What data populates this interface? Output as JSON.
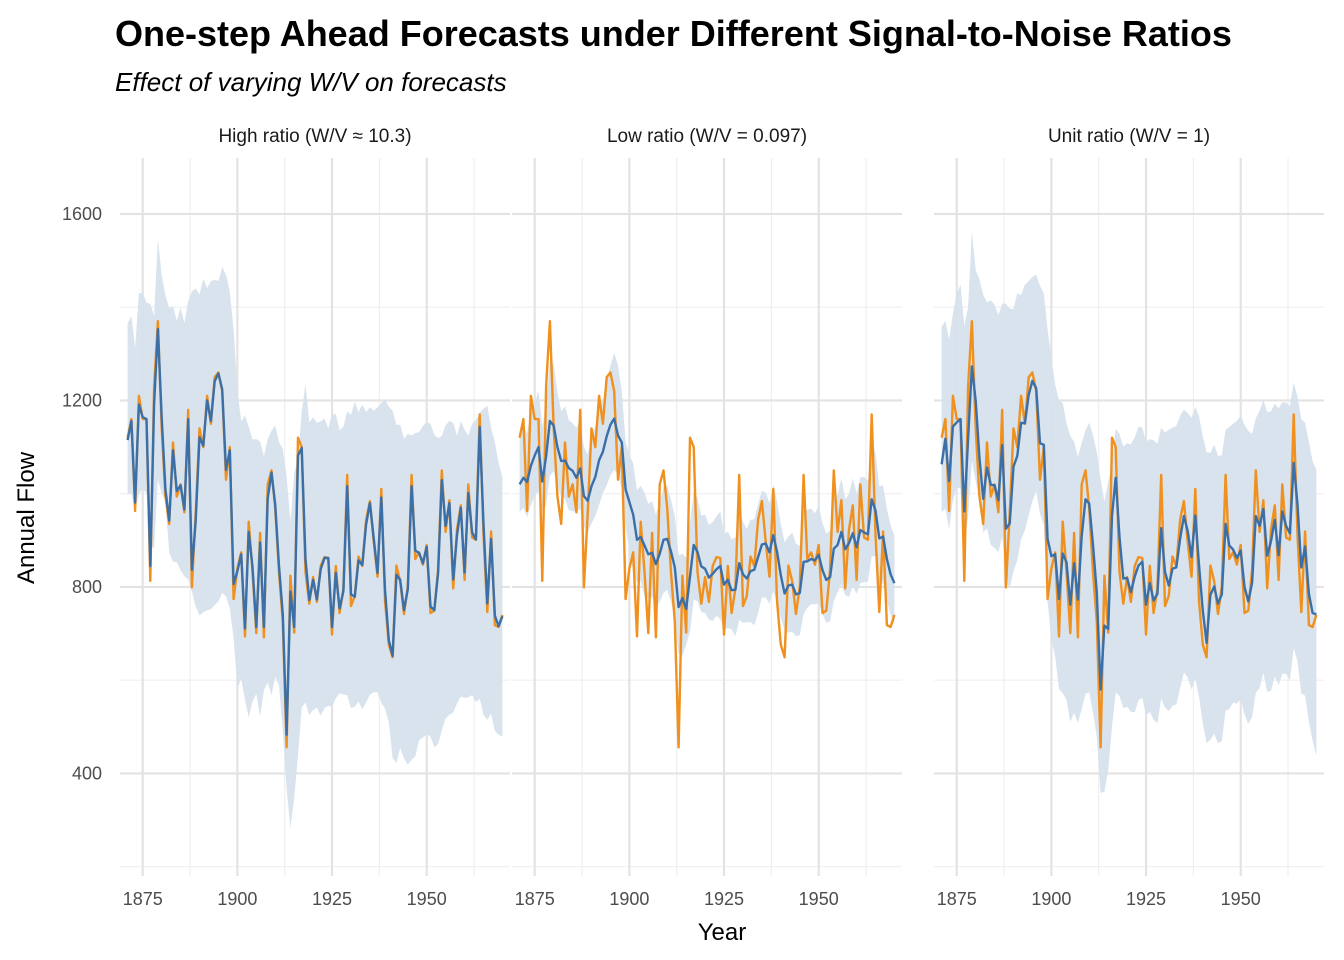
{
  "chart_data": {
    "type": "line",
    "title": "One-step Ahead Forecasts under Different Signal-to-Noise Ratios",
    "subtitle": "Effect of varying W/V on forecasts",
    "xlabel": "Year",
    "ylabel": "Annual Flow",
    "xlim": [
      1869,
      1972
    ],
    "ylim": [
      180,
      1720
    ],
    "x_ticks": [
      1875,
      1900,
      1925,
      1950
    ],
    "y_ticks": [
      400,
      800,
      1200,
      1600
    ],
    "grid": true,
    "legend": "none",
    "colors": {
      "observed": "#F0901E",
      "forecast": "#3B6FA8",
      "band": "#D6E1EC"
    },
    "observed": {
      "x": [
        1871,
        1872,
        1873,
        1874,
        1875,
        1876,
        1877,
        1878,
        1879,
        1880,
        1881,
        1882,
        1883,
        1884,
        1885,
        1886,
        1887,
        1888,
        1889,
        1890,
        1891,
        1892,
        1893,
        1894,
        1895,
        1896,
        1897,
        1898,
        1899,
        1900,
        1901,
        1902,
        1903,
        1904,
        1905,
        1906,
        1907,
        1908,
        1909,
        1910,
        1911,
        1912,
        1913,
        1914,
        1915,
        1916,
        1917,
        1918,
        1919,
        1920,
        1921,
        1922,
        1923,
        1924,
        1925,
        1926,
        1927,
        1928,
        1929,
        1930,
        1931,
        1932,
        1933,
        1934,
        1935,
        1936,
        1937,
        1938,
        1939,
        1940,
        1941,
        1942,
        1943,
        1944,
        1945,
        1946,
        1947,
        1948,
        1949,
        1950,
        1951,
        1952,
        1953,
        1954,
        1955,
        1956,
        1957,
        1958,
        1959,
        1960,
        1961,
        1962,
        1963,
        1964,
        1965,
        1966,
        1967,
        1968,
        1969,
        1970
      ],
      "y": [
        1120,
        1160,
        963,
        1210,
        1160,
        1160,
        813,
        1230,
        1370,
        1140,
        995,
        935,
        1110,
        994,
        1020,
        960,
        1180,
        799,
        958,
        1140,
        1100,
        1210,
        1150,
        1250,
        1260,
        1220,
        1030,
        1100,
        774,
        840,
        874,
        694,
        940,
        833,
        701,
        916,
        692,
        1020,
        1050,
        969,
        831,
        726,
        456,
        824,
        702,
        1120,
        1100,
        832,
        764,
        821,
        768,
        845,
        864,
        862,
        698,
        845,
        744,
        796,
        1040,
        759,
        781,
        865,
        845,
        944,
        984,
        897,
        822,
        1010,
        771,
        676,
        649,
        846,
        812,
        742,
        801,
        1040,
        860,
        874,
        848,
        890,
        744,
        749,
        838,
        1050,
        918,
        986,
        797,
        923,
        975,
        815,
        1020,
        906,
        901,
        1170,
        912,
        746,
        919,
        718,
        714,
        740
      ]
    },
    "series": [
      {
        "name": "High ratio (W/V ≈ 10.3)",
        "forecast": [
          1115,
          1156,
          981,
          1191,
          1164,
          1160,
          845,
          1192,
          1353,
          1163,
          1010,
          942,
          1093,
          1006,
          1018,
          966,
          1160,
          837,
          942,
          1121,
          1103,
          1200,
          1156,
          1241,
          1258,
          1224,
          1051,
          1093,
          806,
          834,
          870,
          711,
          918,
          843,
          714,
          895,
          714,
          990,
          1045,
          977,
          845,
          741,
          483,
          790,
          714,
          1082,
          1098,
          859,
          772,
          815,
          773,
          838,
          862,
          862,
          714,
          830,
          754,
          791,
          1016,
          784,
          779,
          857,
          847,
          934,
          980,
          905,
          830,
          992,
          794,
          686,
          652,
          826,
          815,
          750,
          795,
          1016,
          878,
          873,
          851,
          886,
          758,
          750,
          830,
          1029,
          931,
          980,
          816,
          911,
          970,
          831,
          1001,
          917,
          902,
          1143,
          935,
          765,
          903,
          738,
          716,
          737
        ],
        "lower": [
          1000,
          1000,
          963,
          998,
          1012,
          1000,
          890,
          883,
          1030,
          1000,
          985,
          873,
          854,
          853,
          836,
          823,
          816,
          790,
          758,
          739,
          746,
          750,
          752,
          761,
          769,
          787,
          780,
          754,
          690,
          583,
          603,
          558,
          520,
          554,
          571,
          522,
          579,
          595,
          568,
          607,
          589,
          491,
          367,
          283,
          347,
          438,
          542,
          552,
          525,
          536,
          541,
          524,
          540,
          545,
          543,
          561,
          572,
          569,
          568,
          540,
          543,
          554,
          538,
          552,
          569,
          574,
          574,
          552,
          539,
          510,
          433,
          422,
          455,
          432,
          419,
          429,
          437,
          471,
          477,
          484,
          479,
          456,
          463,
          493,
          518,
          526,
          531,
          550,
          565,
          562,
          563,
          568,
          553,
          560,
          526,
          515,
          528,
          491,
          483,
          479
        ],
        "upper": [
          1365,
          1381,
          1313,
          1430,
          1431,
          1410,
          1407,
          1382,
          1546,
          1468,
          1425,
          1398,
          1402,
          1371,
          1399,
          1366,
          1413,
          1434,
          1440,
          1427,
          1461,
          1441,
          1456,
          1459,
          1456,
          1486,
          1470,
          1433,
          1352,
          1222,
          1155,
          1167,
          1144,
          1116,
          1117,
          1112,
          1080,
          1117,
          1135,
          1146,
          1110,
          1097,
          1038,
          940,
          1045,
          1072,
          1175,
          1236,
          1153,
          1164,
          1152,
          1155,
          1161,
          1140,
          1170,
          1170,
          1136,
          1144,
          1177,
          1169,
          1197,
          1175,
          1191,
          1175,
          1185,
          1178,
          1185,
          1195,
          1202,
          1187,
          1178,
          1148,
          1148,
          1118,
          1128,
          1125,
          1130,
          1132,
          1145,
          1154,
          1150,
          1126,
          1119,
          1124,
          1147,
          1156,
          1152,
          1124,
          1156,
          1137,
          1124,
          1150,
          1158,
          1173,
          1182,
          1189,
          1141,
          1110,
          1066,
          1036
        ]
      },
      {
        "name": "Low ratio (W/V = 0.097)",
        "forecast": [
          1020,
          1034,
          1025,
          1060,
          1082,
          1100,
          1026,
          1080,
          1156,
          1146,
          1100,
          1070,
          1071,
          1055,
          1049,
          1034,
          1054,
          995,
          985,
          1016,
          1036,
          1072,
          1090,
          1123,
          1148,
          1161,
          1125,
          1110,
          1009,
          982,
          955,
          901,
          907,
          889,
          870,
          873,
          849,
          871,
          901,
          903,
          876,
          842,
          757,
          776,
          753,
          822,
          890,
          875,
          844,
          839,
          820,
          828,
          838,
          845,
          805,
          815,
          793,
          794,
          851,
          827,
          818,
          834,
          837,
          864,
          891,
          893,
          874,
          911,
          876,
          825,
          786,
          803,
          805,
          784,
          787,
          854,
          855,
          860,
          857,
          869,
          836,
          815,
          821,
          882,
          890,
          918,
          881,
          894,
          915,
          885,
          922,
          917,
          913,
          988,
          964,
          904,
          908,
          860,
          827,
          808
        ],
        "lower": [
          960,
          970,
          949,
          976,
          997,
          1005,
          962,
          975,
          1039,
          1048,
          1017,
          993,
          989,
          965,
          962,
          962,
          967,
          930,
          916,
          936,
          952,
          976,
          1001,
          1018,
          1039,
          1051,
          1041,
          1011,
          926,
          882,
          831,
          811,
          812,
          780,
          778,
          779,
          755,
          768,
          787,
          794,
          768,
          735,
          657,
          652,
          676,
          704,
          773,
          769,
          746,
          744,
          730,
          727,
          738,
          731,
          707,
          712,
          709,
          694,
          729,
          723,
          724,
          725,
          718,
          744,
          778,
          777,
          764,
          791,
          767,
          733,
          708,
          702,
          704,
          694,
          697,
          742,
          755,
          763,
          763,
          765,
          741,
          723,
          726,
          770,
          789,
          806,
          782,
          779,
          802,
          785,
          808,
          810,
          811,
          866,
          866,
          806,
          808,
          771,
          740,
          719
        ],
        "upper": [
          1130,
          1146,
          1130,
          1177,
          1195,
          1220,
          1143,
          1191,
          1285,
          1278,
          1218,
          1177,
          1187,
          1158,
          1151,
          1141,
          1159,
          1101,
          1084,
          1119,
          1146,
          1184,
          1201,
          1240,
          1274,
          1302,
          1276,
          1220,
          1111,
          1082,
          1065,
          1007,
          1017,
          1002,
          978,
          984,
          955,
          982,
          1015,
          1017,
          987,
          951,
          868,
          871,
          863,
          938,
          1004,
          990,
          953,
          955,
          933,
          939,
          952,
          962,
          913,
          919,
          902,
          906,
          966,
          940,
          924,
          944,
          945,
          977,
          1007,
          1002,
          980,
          1019,
          985,
          935,
          896,
          908,
          917,
          893,
          888,
          963,
          966,
          968,
          958,
          974,
          937,
          914,
          921,
          989,
          998,
          1033,
          988,
          999,
          1033,
          1000,
          1035,
          1036,
          1028,
          1117,
          1087,
          1016,
          1018,
          967,
          932,
          910
        ]
      },
      {
        "name": "Unit ratio (W/V = 1)",
        "forecast": [
          1063,
          1118,
          1027,
          1144,
          1153,
          1160,
          962,
          1117,
          1273,
          1199,
          1079,
          989,
          1056,
          1019,
          1018,
          986,
          1104,
          925,
          936,
          1058,
          1081,
          1152,
          1151,
          1212,
          1242,
          1226,
          1108,
          1105,
          903,
          866,
          870,
          774,
          872,
          853,
          762,
          851,
          773,
          909,
          988,
          979,
          890,
          788,
          580,
          717,
          710,
          953,
          1034,
          907,
          818,
          819,
          789,
          822,
          846,
          854,
          762,
          808,
          771,
          785,
          926,
          832,
          803,
          839,
          842,
          903,
          952,
          920,
          864,
          953,
          847,
          749,
          680,
          783,
          801,
          764,
          784,
          935,
          889,
          880,
          862,
          878,
          800,
          769,
          809,
          952,
          931,
          967,
          867,
          898,
          944,
          868,
          962,
          931,
          915,
          1066,
          977,
          842,
          887,
          785,
          744,
          741
        ],
        "lower": [
          960,
          968,
          924,
          986,
          1014,
          1011,
          889,
          950,
          1071,
          1027,
          987,
          917,
          926,
          890,
          883,
          875,
          907,
          813,
          798,
          833,
          857,
          902,
          921,
          954,
          984,
          1006,
          957,
          933,
          768,
          686,
          650,
          581,
          572,
          558,
          511,
          530,
          508,
          538,
          571,
          574,
          531,
          478,
          358,
          361,
          407,
          499,
          574,
          566,
          540,
          543,
          532,
          531,
          557,
          562,
          524,
          532,
          515,
          508,
          561,
          541,
          534,
          545,
          548,
          583,
          617,
          606,
          580,
          603,
          565,
          508,
          465,
          472,
          485,
          465,
          469,
          535,
          538,
          552,
          550,
          560,
          527,
          506,
          521,
          573,
          583,
          616,
          575,
          577,
          608,
          590,
          614,
          614,
          600,
          669,
          640,
          572,
          567,
          511,
          470,
          438
        ],
        "upper": [
          1358,
          1371,
          1330,
          1386,
          1429,
          1448,
          1360,
          1400,
          1563,
          1480,
          1460,
          1427,
          1410,
          1415,
          1405,
          1383,
          1408,
          1407,
          1397,
          1396,
          1430,
          1426,
          1448,
          1456,
          1465,
          1470,
          1446,
          1430,
          1351,
          1291,
          1234,
          1199,
          1195,
          1150,
          1124,
          1111,
          1079,
          1109,
          1136,
          1152,
          1126,
          1089,
          1031,
          983,
          1025,
          1069,
          1139,
          1128,
          1101,
          1108,
          1106,
          1121,
          1144,
          1142,
          1111,
          1117,
          1115,
          1107,
          1142,
          1131,
          1137,
          1142,
          1145,
          1167,
          1180,
          1173,
          1163,
          1186,
          1166,
          1123,
          1089,
          1088,
          1105,
          1081,
          1082,
          1137,
          1143,
          1150,
          1156,
          1167,
          1148,
          1135,
          1128,
          1162,
          1178,
          1202,
          1175,
          1177,
          1193,
          1183,
          1196,
          1195,
          1188,
          1238,
          1208,
          1160,
          1152,
          1111,
          1070,
          1051
        ]
      }
    ]
  }
}
